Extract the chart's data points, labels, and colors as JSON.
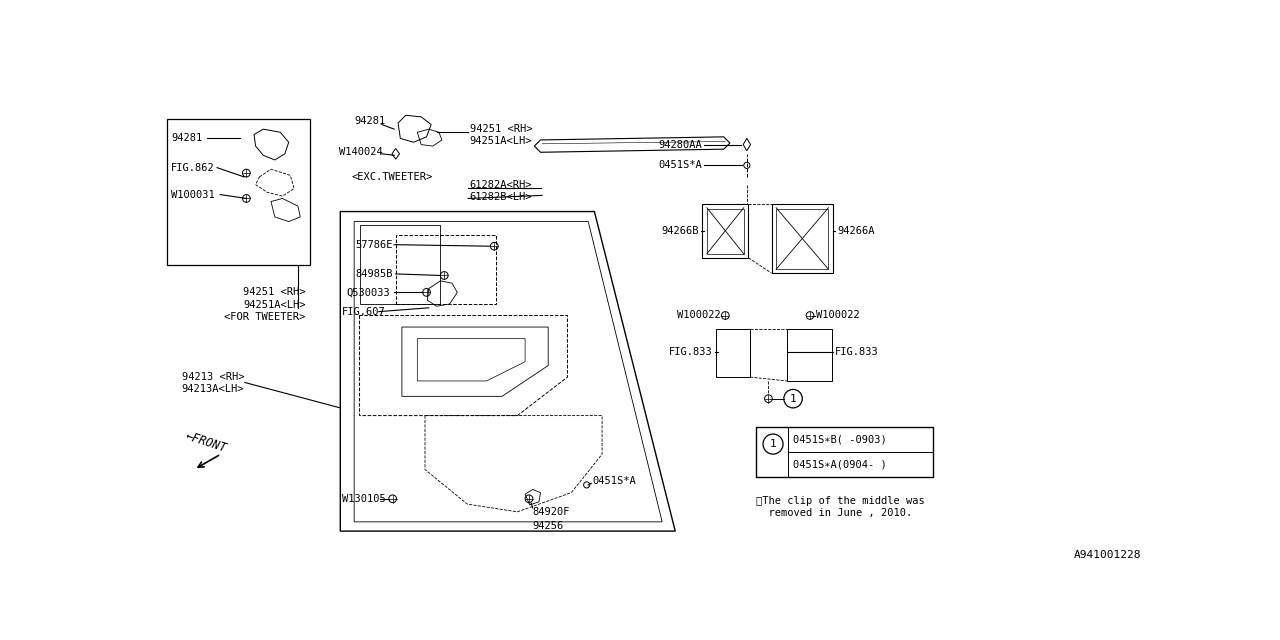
{
  "bg_color": "#ffffff",
  "line_color": "#000000",
  "font_color": "#000000",
  "diagram_ref": "A941001228",
  "note_text": "※The clip of the middle was\n  removed in June , 2010.",
  "legend_lines": [
    "0451S∗B( -0903)",
    "0451S∗A(0904- )"
  ],
  "font_size": 7.5
}
